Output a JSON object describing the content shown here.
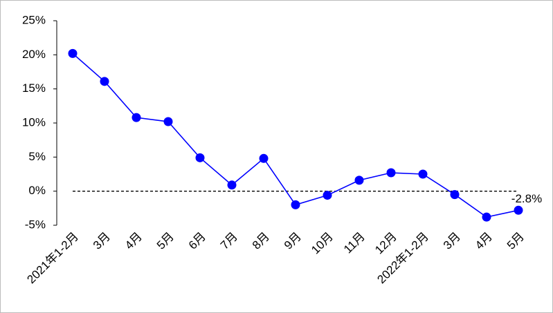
{
  "chart_data": {
    "type": "line",
    "categories": [
      "2021年1-2月",
      "3月",
      "4月",
      "5月",
      "6月",
      "7月",
      "8月",
      "9月",
      "10月",
      "11月",
      "12月",
      "2022年1-2月",
      "3月",
      "4月",
      "5月"
    ],
    "series": [
      {
        "color": "#0000ff",
        "values": [
          20.2,
          16.1,
          10.8,
          10.2,
          4.9,
          0.9,
          4.8,
          -2.0,
          -0.6,
          1.6,
          2.7,
          2.5,
          -0.5,
          -3.8,
          -2.8
        ],
        "value_labels": [
          null,
          null,
          null,
          null,
          null,
          null,
          null,
          null,
          null,
          null,
          null,
          null,
          null,
          null,
          "-2.8%"
        ]
      }
    ],
    "ylim": [
      -5,
      25
    ],
    "yticks": [
      {
        "value": -5,
        "label": "-5%"
      },
      {
        "value": 0,
        "label": "0%"
      },
      {
        "value": 5,
        "label": "5%"
      },
      {
        "value": 10,
        "label": "10%"
      },
      {
        "value": 15,
        "label": "15%"
      },
      {
        "value": 20,
        "label": "20%"
      },
      {
        "value": 25,
        "label": "25%"
      }
    ],
    "zero_line": true,
    "grid": false
  }
}
